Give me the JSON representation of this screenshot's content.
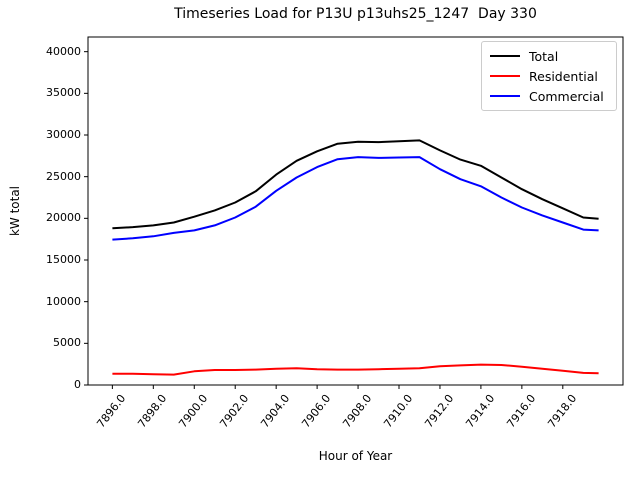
{
  "chart_data": {
    "type": "line",
    "title": "Timeseries Load for P13U p13uhs25_1247  Day 330",
    "xlabel": "Hour of Year",
    "ylabel": "kW total",
    "x": [
      7896,
      7897,
      7898,
      7899,
      7900,
      7901,
      7902,
      7903,
      7904,
      7905,
      7906,
      7907,
      7908,
      7909,
      7910,
      7911,
      7912,
      7913,
      7914,
      7915,
      7916,
      7917,
      7918,
      7919,
      7919.75
    ],
    "series": [
      {
        "name": "Total",
        "color": "#000000",
        "values": [
          18800,
          18950,
          19150,
          19500,
          20200,
          20950,
          21900,
          23250,
          25250,
          26900,
          28050,
          28950,
          29200,
          29150,
          29250,
          29350,
          28150,
          27050,
          26300,
          24900,
          23500,
          22300,
          21200,
          20100,
          19950
        ]
      },
      {
        "name": "Residential",
        "color": "#ff0000",
        "values": [
          1350,
          1350,
          1300,
          1250,
          1650,
          1800,
          1800,
          1850,
          1950,
          2000,
          1900,
          1850,
          1850,
          1900,
          1950,
          2000,
          2250,
          2350,
          2450,
          2400,
          2200,
          1950,
          1700,
          1450,
          1400
        ]
      },
      {
        "name": "Commercial",
        "color": "#0000ff",
        "values": [
          17450,
          17600,
          17850,
          18250,
          18550,
          19150,
          20100,
          21400,
          23300,
          24900,
          26150,
          27100,
          27350,
          27250,
          27300,
          27350,
          25900,
          24700,
          23850,
          22500,
          21300,
          20350,
          19500,
          18650,
          18550
        ]
      }
    ],
    "xtick_labels": [
      "7896.0",
      "7898.0",
      "7900.0",
      "7902.0",
      "7904.0",
      "7906.0",
      "7908.0",
      "7910.0",
      "7912.0",
      "7914.0",
      "7916.0",
      "7918.0"
    ],
    "ytick_labels": [
      "0",
      "5000",
      "10000",
      "15000",
      "20000",
      "25000",
      "30000",
      "35000",
      "40000"
    ],
    "xlim": [
      7894.81,
      7920.94
    ],
    "ylim": [
      0,
      41760
    ],
    "grid": false,
    "legend_position": "upper right",
    "line_width": 2
  }
}
